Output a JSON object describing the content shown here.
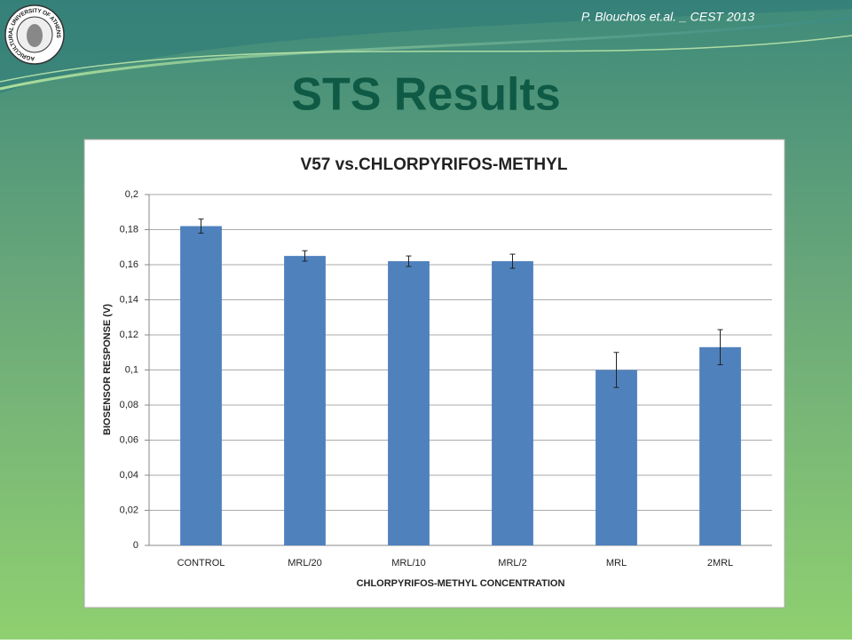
{
  "header": {
    "credit": "P. Blouchos et.al. _  CEST 2013",
    "title": "STS Results",
    "logo_text": "AGRICULTURAL UNIVERSITY OF ATHENS"
  },
  "chart_data": {
    "type": "bar",
    "title": "V57 vs.CHLORPYRIFOS-METHYL",
    "x_label": "CHLORPYRIFOS-METHYL CONCENTRATION",
    "y_label": "BIOSENSOR RESPONSE (V)",
    "categories": [
      "CONTROL",
      "MRL/20",
      "MRL/10",
      "MRL/2",
      "MRL",
      "2MRL"
    ],
    "values": [
      0.182,
      0.165,
      0.162,
      0.162,
      0.1,
      0.113
    ],
    "errors": [
      0.004,
      0.003,
      0.003,
      0.004,
      0.01,
      0.01
    ],
    "color": "#4f81bd",
    "ylim": [
      0,
      0.2
    ],
    "yticks": [
      0,
      {
        "value": 0.02,
        "label": "0,02"
      },
      {
        "value": 0.04,
        "label": "0,04"
      },
      {
        "value": 0.06,
        "label": "0,06"
      },
      {
        "value": 0.08,
        "label": "0,08"
      },
      {
        "value": 0.1,
        "label": "0,1"
      },
      {
        "value": 0.12,
        "label": "0,12"
      },
      {
        "value": 0.14,
        "label": "0,14"
      },
      {
        "value": 0.16,
        "label": "0,16"
      },
      {
        "value": 0.18,
        "label": "0,18"
      },
      {
        "value": 0.2,
        "label": "0,2"
      }
    ],
    "grid": true
  }
}
